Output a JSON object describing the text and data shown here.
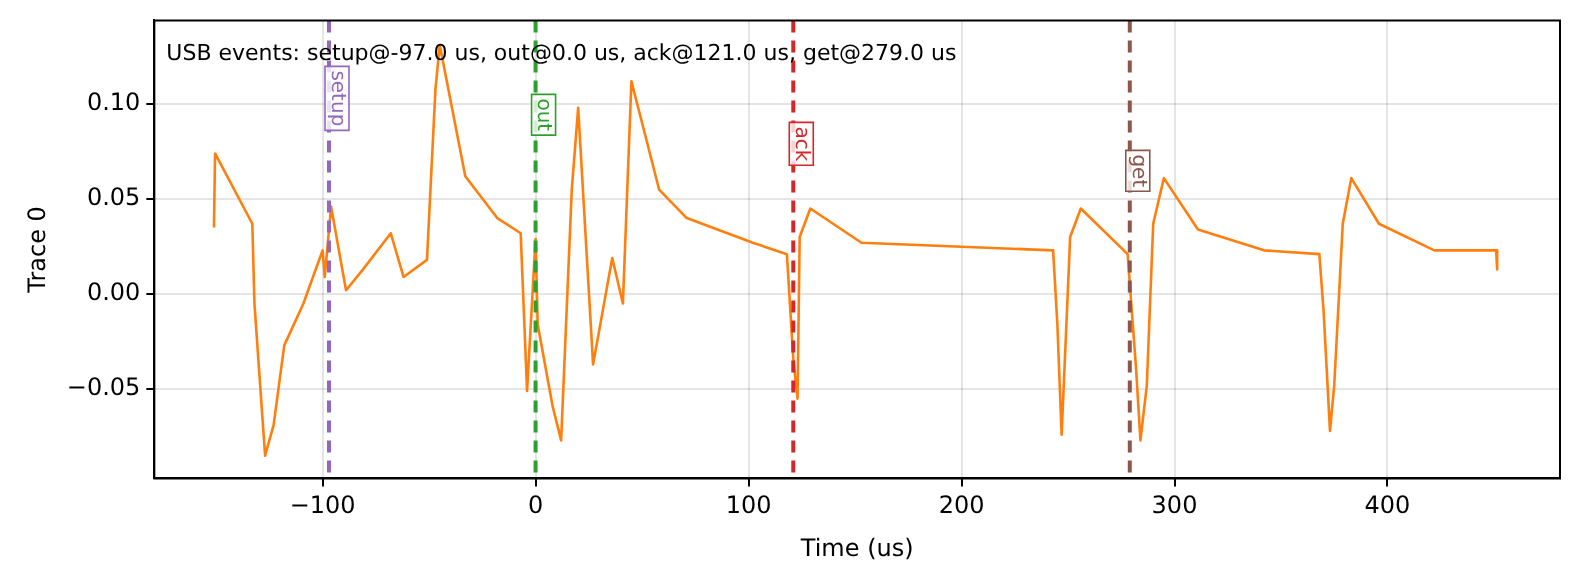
{
  "chart_data": {
    "type": "line",
    "xlabel": "Time (us)",
    "ylabel": "Trace 0",
    "annotations": [
      "USB events: setup@-97.0 us, out@0.0 us, ack@121.0 us, get@279.0 us"
    ],
    "xlim": [
      -179,
      481
    ],
    "ylim": [
      -0.097,
      0.144
    ],
    "xticks": [
      {
        "value": -100,
        "label": "−100"
      },
      0,
      100,
      200,
      300,
      400
    ],
    "yticks": [
      {
        "value": -0.05,
        "label": "−0.05"
      },
      {
        "value": 0,
        "label": "0.00"
      },
      {
        "value": 0.05,
        "label": "0.05"
      },
      {
        "value": 0.1,
        "label": "0.10"
      }
    ],
    "grid": true,
    "marker": "none",
    "line_style": "solid",
    "ref_lines": [
      {
        "axis": "x",
        "value": -97,
        "label": "setup",
        "color": "#9467bd",
        "line_style": "dashed"
      },
      {
        "axis": "x",
        "value": 0,
        "label": "out",
        "color": "#2ca02c",
        "line_style": "dashed"
      },
      {
        "axis": "x",
        "value": 121,
        "label": "ack",
        "color": "#d62728",
        "line_style": "dashed"
      },
      {
        "axis": "x",
        "value": 279,
        "label": "get",
        "color": "#8c564b",
        "line_style": "dashed"
      }
    ],
    "series": [
      {
        "color": "#ff7f0e",
        "x": [
          -151,
          -150.5,
          -133,
          -132,
          -127,
          -123,
          -118,
          -109,
          -100,
          -99,
          -96,
          -89,
          -81,
          -68,
          -62,
          -51,
          -47,
          -45,
          -33,
          -18,
          -7,
          -4,
          0,
          1,
          8,
          12,
          17,
          20,
          27,
          36,
          41,
          45,
          58,
          71,
          102,
          118,
          121,
          123,
          124,
          129,
          153,
          243,
          245,
          247,
          251,
          256,
          278,
          282,
          284,
          287,
          290,
          295,
          311,
          342,
          368,
          370,
          373,
          375,
          379,
          383,
          396,
          422,
          451,
          451.5
        ],
        "values": [
          0.035,
          0.074,
          0.037,
          -0.005,
          -0.085,
          -0.069,
          -0.027,
          -0.005,
          0.023,
          0.009,
          0.046,
          0.002,
          0.013,
          0.032,
          0.009,
          0.018,
          0.108,
          0.131,
          0.062,
          0.04,
          0.032,
          -0.051,
          0.029,
          -0.016,
          -0.059,
          -0.077,
          0.055,
          0.098,
          -0.037,
          0.019,
          -0.005,
          0.112,
          0.055,
          0.04,
          0.027,
          0.021,
          -0.034,
          -0.055,
          0.03,
          0.045,
          0.027,
          0.023,
          -0.016,
          -0.074,
          0.03,
          0.045,
          0.021,
          -0.04,
          -0.077,
          -0.048,
          0.037,
          0.061,
          0.034,
          0.023,
          0.021,
          -0.009,
          -0.072,
          -0.048,
          0.037,
          0.061,
          0.037,
          0.023,
          0.023,
          0.013
        ]
      }
    ]
  }
}
